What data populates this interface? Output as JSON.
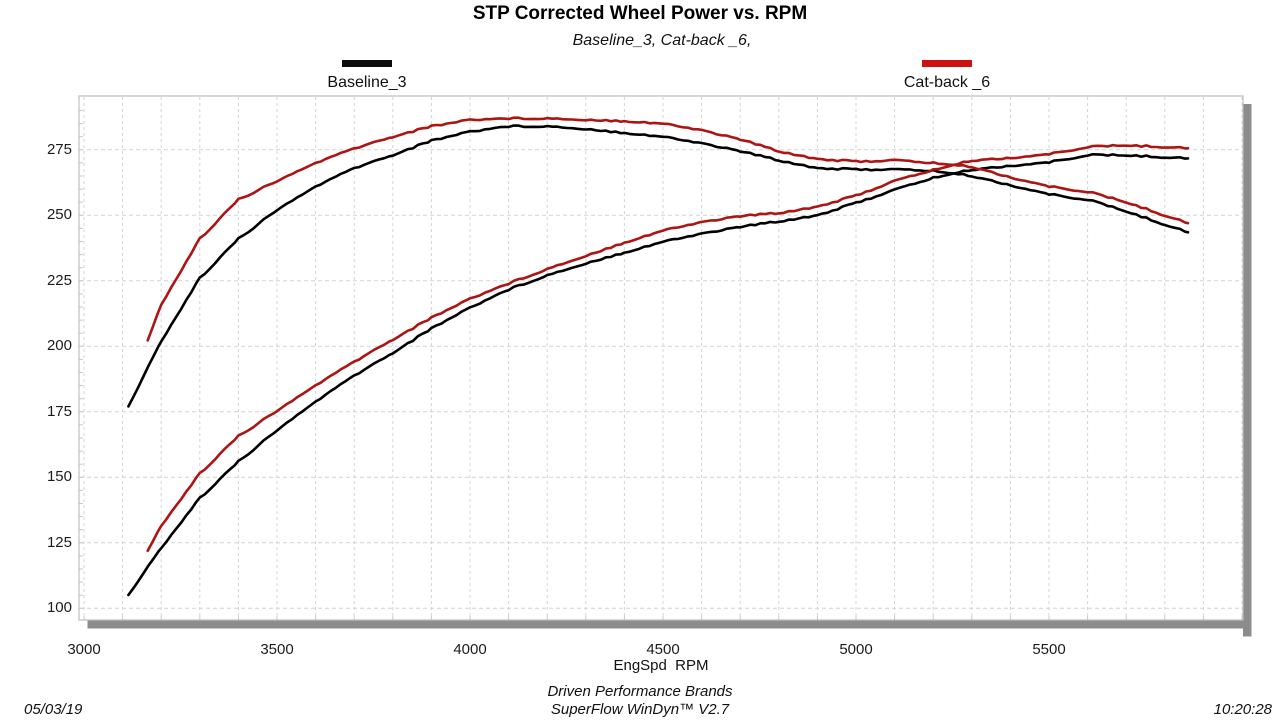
{
  "header": {
    "title": "STP Corrected Wheel Power vs. RPM",
    "subtitle": "Baseline_3, Cat-back _6,"
  },
  "legend": [
    {
      "label": "Baseline_3",
      "color": "#0c0c0c"
    },
    {
      "label": "Cat-back _6",
      "color": "#cc1111"
    }
  ],
  "axes": {
    "x": {
      "label": "EngSpd  RPM",
      "tick_labels": [
        "3000",
        "3500",
        "4000",
        "4500",
        "5000",
        "5500"
      ],
      "tick_values": [
        3000,
        3500,
        4000,
        4500,
        5000,
        5500
      ],
      "min": 3000,
      "max": 6000,
      "grid_step": 100
    },
    "y": {
      "tick_labels": [
        "100",
        "125",
        "150",
        "175",
        "200",
        "225",
        "250",
        "275"
      ],
      "tick_values": [
        100,
        125,
        150,
        175,
        200,
        225,
        250,
        275
      ],
      "min": 95,
      "max": 295,
      "grid_step": 25,
      "minor_tick_step": 5
    }
  },
  "footer": {
    "date": "05/03/19",
    "brand": "Driven Performance Brands",
    "software": "SuperFlow WinDyn™ V2.7",
    "time": "10:20:28"
  },
  "style": {
    "grid_color": "#d4d4d4",
    "border_color": "#bdbdbd",
    "shadow_color": "#8c8c8c",
    "curve_red": "#ad1414",
    "curve_black": "#000000"
  },
  "chart_data": {
    "type": "line",
    "title": "STP Corrected Wheel Power vs. RPM",
    "subtitle": "Baseline_3, Cat-back _6,",
    "xlabel": "EngSpd RPM",
    "ylabel": "",
    "x_range": [
      3000,
      6000
    ],
    "y_range": [
      95,
      295
    ],
    "grid": true,
    "legend_position": "top",
    "series": [
      {
        "name": "Baseline_3",
        "curve": "upper",
        "color": "#000000",
        "x": [
          3115,
          3200,
          3300,
          3400,
          3500,
          3600,
          3700,
          3800,
          3900,
          4000,
          4100,
          4200,
          4300,
          4400,
          4500,
          4600,
          4700,
          4800,
          4900,
          5000,
          5100,
          5200,
          5300,
          5400,
          5500,
          5600,
          5700,
          5800,
          5860
        ],
        "values": [
          177,
          202,
          226,
          241,
          252,
          261,
          268,
          273,
          278.5,
          282,
          284,
          284,
          283,
          281.5,
          280,
          277.5,
          274.5,
          271,
          268,
          267.5,
          267.5,
          267,
          265,
          261.5,
          258,
          256,
          251.5,
          246.5,
          243.5
        ]
      },
      {
        "name": "Baseline_3",
        "curve": "lower",
        "color": "#000000",
        "x": [
          3115,
          3200,
          3300,
          3400,
          3500,
          3600,
          3700,
          3800,
          3900,
          4000,
          4100,
          4200,
          4300,
          4400,
          4500,
          4600,
          4700,
          4800,
          4900,
          5000,
          5100,
          5200,
          5300,
          5400,
          5500,
          5600,
          5700,
          5800,
          5860
        ],
        "values": [
          105.0,
          123.1,
          142.0,
          156.0,
          167.9,
          178.9,
          188.8,
          197.5,
          206.8,
          214.8,
          221.7,
          227.1,
          231.7,
          235.8,
          239.9,
          243.0,
          245.6,
          247.7,
          250.0,
          254.7,
          259.7,
          264.3,
          267.4,
          268.9,
          270.2,
          273.0,
          272.9,
          272.2,
          271.7
        ]
      },
      {
        "name": "Cat-back _6",
        "curve": "upper",
        "color": "#ad1414",
        "x": [
          3165,
          3200,
          3300,
          3400,
          3500,
          3600,
          3700,
          3800,
          3900,
          4000,
          4100,
          4200,
          4300,
          4400,
          4500,
          4600,
          4700,
          4800,
          4900,
          5000,
          5100,
          5200,
          5300,
          5400,
          5500,
          5600,
          5700,
          5800,
          5860
        ],
        "values": [
          202,
          216,
          241,
          256,
          263,
          270,
          275.5,
          280,
          284,
          286.5,
          287,
          287,
          286.5,
          286,
          285,
          282.5,
          279,
          274.5,
          271.5,
          270.5,
          271,
          270,
          268.5,
          264.5,
          261,
          259,
          255,
          250,
          247
        ]
      },
      {
        "name": "Cat-back _6",
        "curve": "lower",
        "color": "#ad1414",
        "x": [
          3165,
          3200,
          3300,
          3400,
          3500,
          3600,
          3700,
          3800,
          3900,
          4000,
          4100,
          4200,
          4300,
          4400,
          4500,
          4600,
          4700,
          4800,
          4900,
          5000,
          5100,
          5200,
          5300,
          5400,
          5500,
          5600,
          5700,
          5800,
          5860
        ],
        "values": [
          121.7,
          131.6,
          151.4,
          165.7,
          175.3,
          185.1,
          194.1,
          202.6,
          210.9,
          218.2,
          224.0,
          229.5,
          234.6,
          239.6,
          244.2,
          247.4,
          249.7,
          250.9,
          253.3,
          257.5,
          263.1,
          267.3,
          270.9,
          271.9,
          273.3,
          276.1,
          276.7,
          276.1,
          275.6
        ]
      }
    ]
  }
}
